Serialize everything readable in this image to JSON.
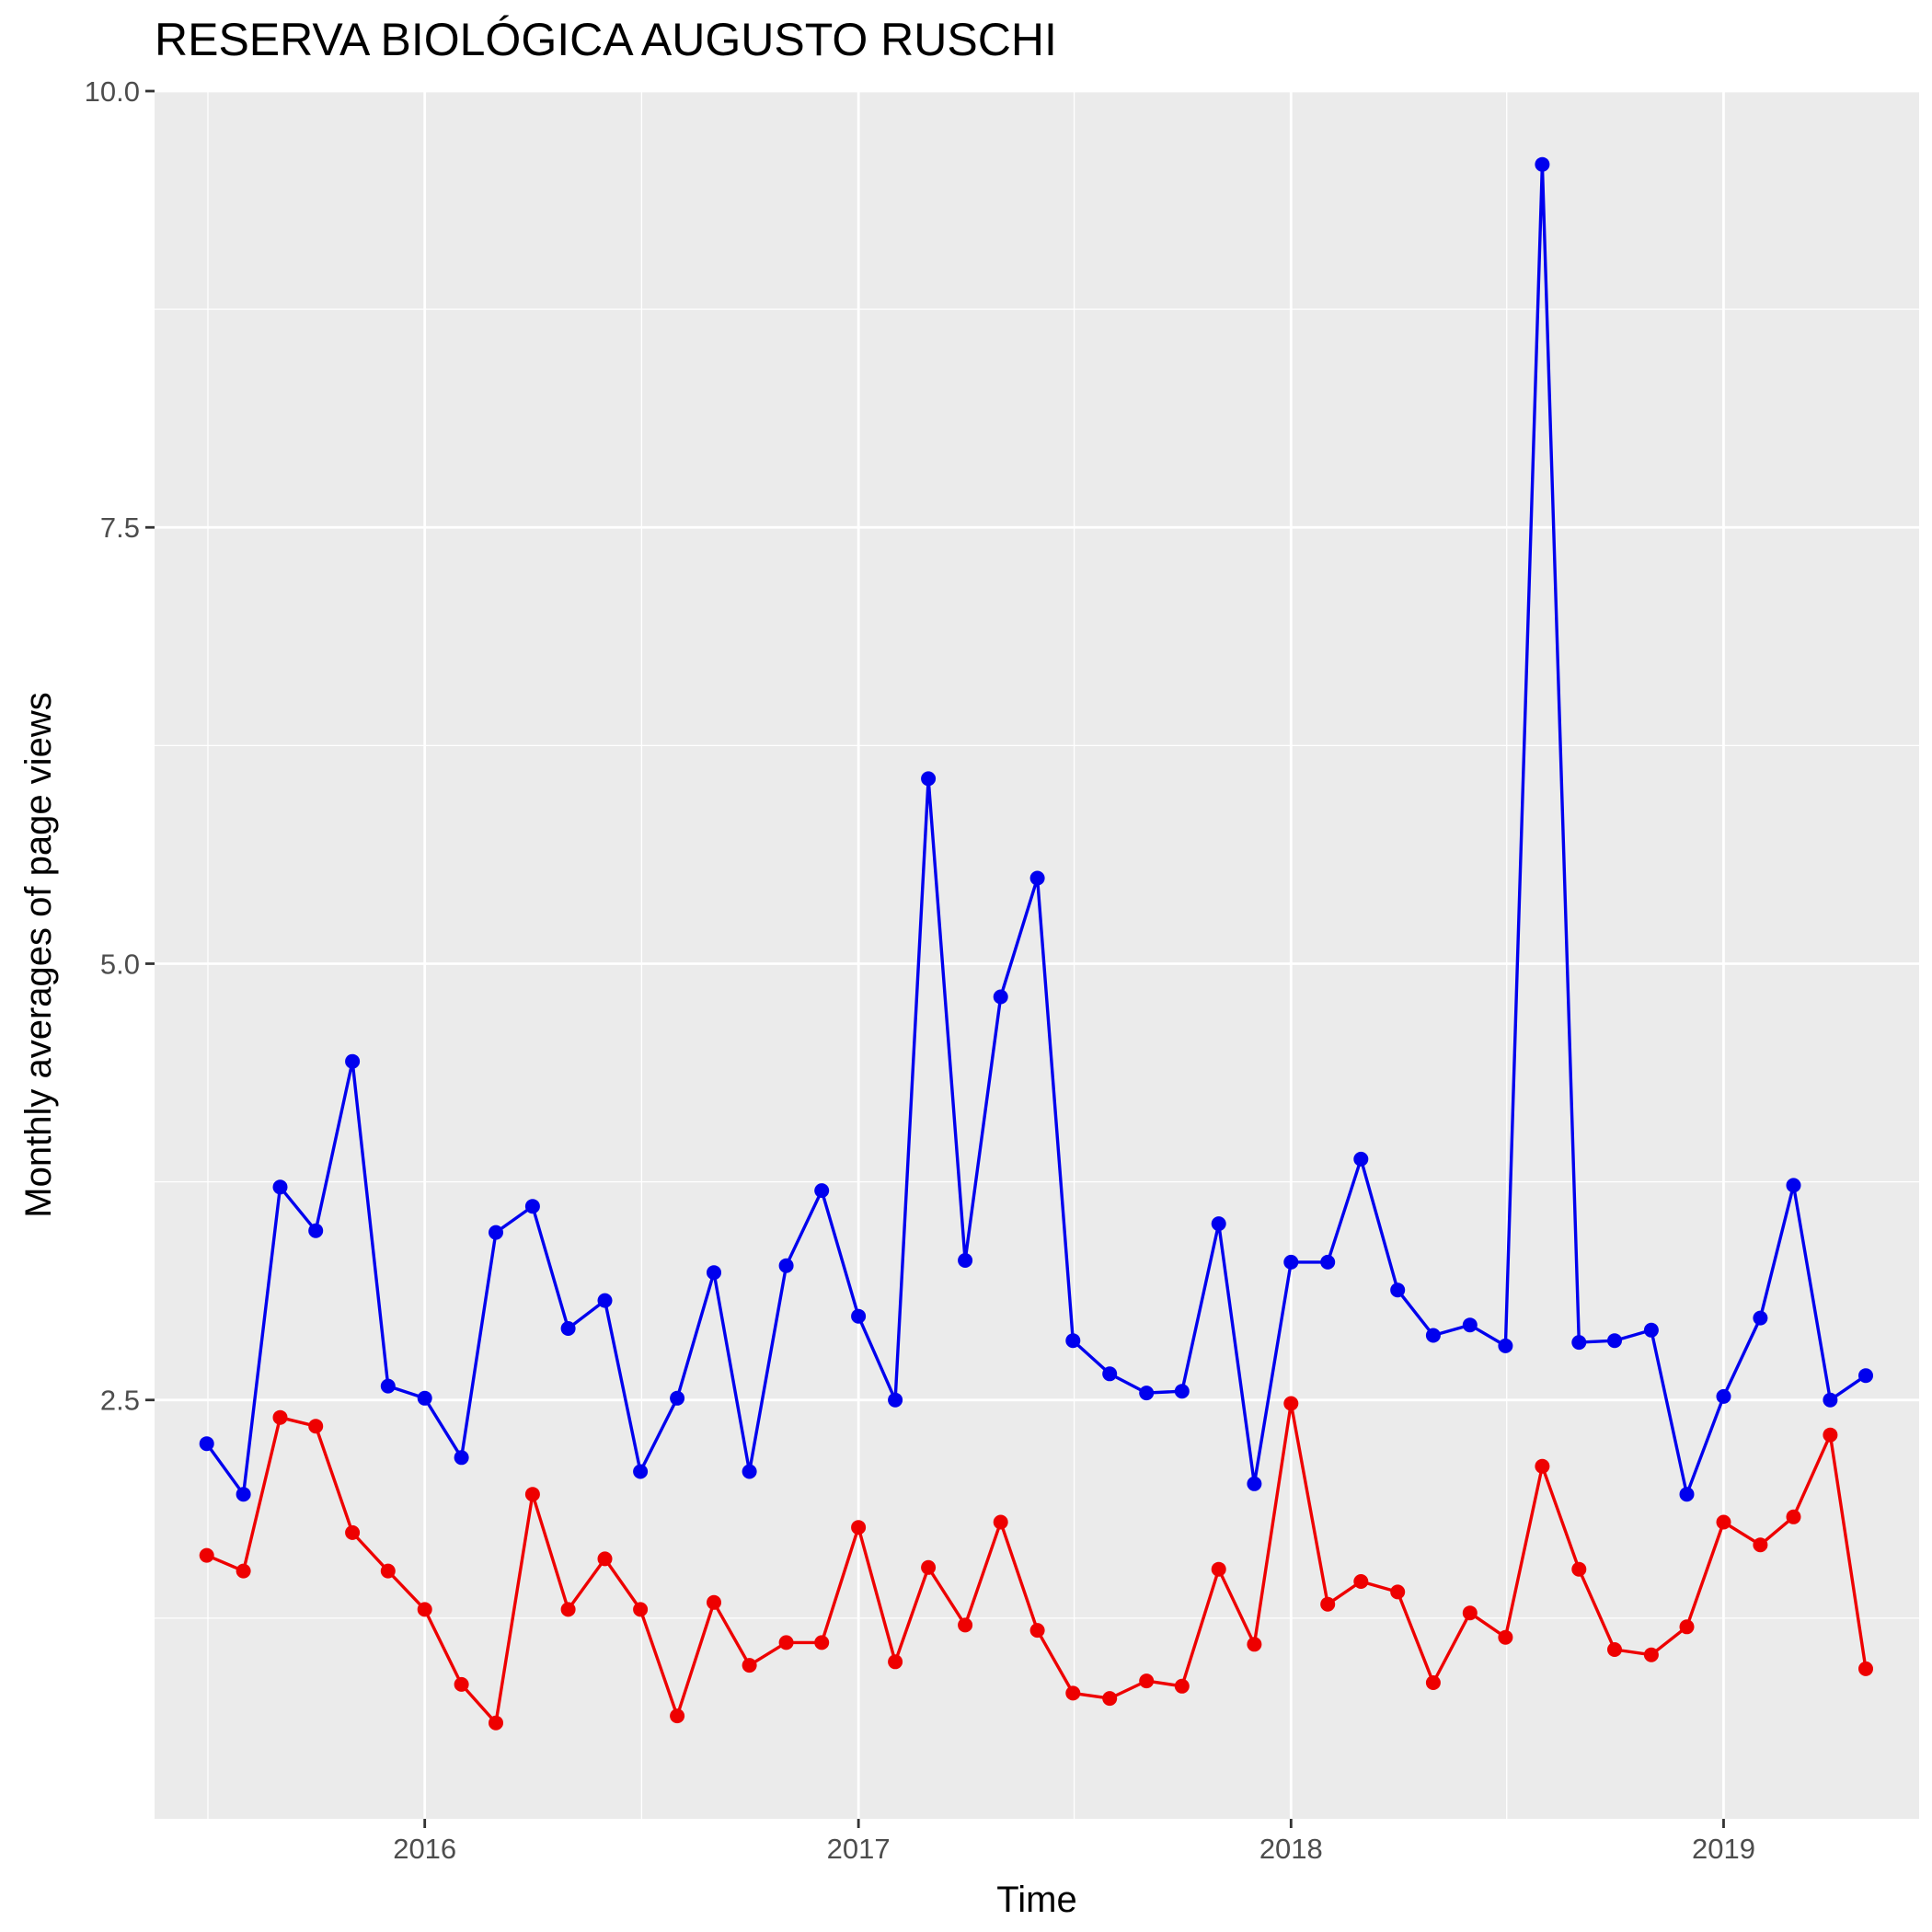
{
  "chart_data": {
    "type": "line",
    "title": "RESERVA BIOLÓGICA AUGUSTO RUSCHI",
    "xlabel": "Time",
    "ylabel": "Monthly averages of page views",
    "x_ticks": [
      "2016",
      "2017",
      "2018",
      "2019"
    ],
    "y_ticks": [
      "2.5",
      "5.0",
      "7.5",
      "10.0"
    ],
    "ylim": [
      0.1,
      10.0
    ],
    "xlim": [
      "2015-05-18",
      "2019-06-15"
    ],
    "grid": true,
    "legend": "none",
    "x": [
      "2015-07",
      "2015-08",
      "2015-09",
      "2015-10",
      "2015-11",
      "2015-12",
      "2016-01",
      "2016-02",
      "2016-03",
      "2016-04",
      "2016-05",
      "2016-06",
      "2016-07",
      "2016-08",
      "2016-09",
      "2016-10",
      "2016-11",
      "2016-12",
      "2017-01",
      "2017-02",
      "2017-03",
      "2017-04",
      "2017-05",
      "2017-06",
      "2017-07",
      "2017-08",
      "2017-09",
      "2017-10",
      "2017-11",
      "2017-12",
      "2018-01",
      "2018-02",
      "2018-03",
      "2018-04",
      "2018-05",
      "2018-06",
      "2018-07",
      "2018-08",
      "2018-09",
      "2018-10",
      "2018-11",
      "2018-12",
      "2019-01",
      "2019-02",
      "2019-03",
      "2019-04",
      "2019-05"
    ],
    "series": [
      {
        "color": "#0000EE",
        "values": [
          2.25,
          1.96,
          3.72,
          3.47,
          4.44,
          2.58,
          2.51,
          2.17,
          3.46,
          3.61,
          2.91,
          3.07,
          2.09,
          2.51,
          3.23,
          2.09,
          3.27,
          3.7,
          2.98,
          2.5,
          6.06,
          3.3,
          4.81,
          5.49,
          2.84,
          2.65,
          2.54,
          2.55,
          3.51,
          2.02,
          3.29,
          3.29,
          3.88,
          3.13,
          2.87,
          2.93,
          2.81,
          9.58,
          2.83,
          2.84,
          2.9,
          1.96,
          2.52,
          2.97,
          3.73,
          2.5,
          2.64
        ]
      },
      {
        "color": "#EE0000",
        "values": [
          1.61,
          1.52,
          2.4,
          2.35,
          1.74,
          1.52,
          1.3,
          0.87,
          0.65,
          1.96,
          1.3,
          1.59,
          1.3,
          0.69,
          1.34,
          0.98,
          1.11,
          1.11,
          1.77,
          1.0,
          1.54,
          1.21,
          1.8,
          1.18,
          0.82,
          0.79,
          0.89,
          0.86,
          1.53,
          1.1,
          2.48,
          1.33,
          1.46,
          1.4,
          0.88,
          1.28,
          1.14,
          2.12,
          1.53,
          1.07,
          1.04,
          1.2,
          1.8,
          1.67,
          1.83,
          2.3,
          0.96
        ]
      }
    ]
  }
}
